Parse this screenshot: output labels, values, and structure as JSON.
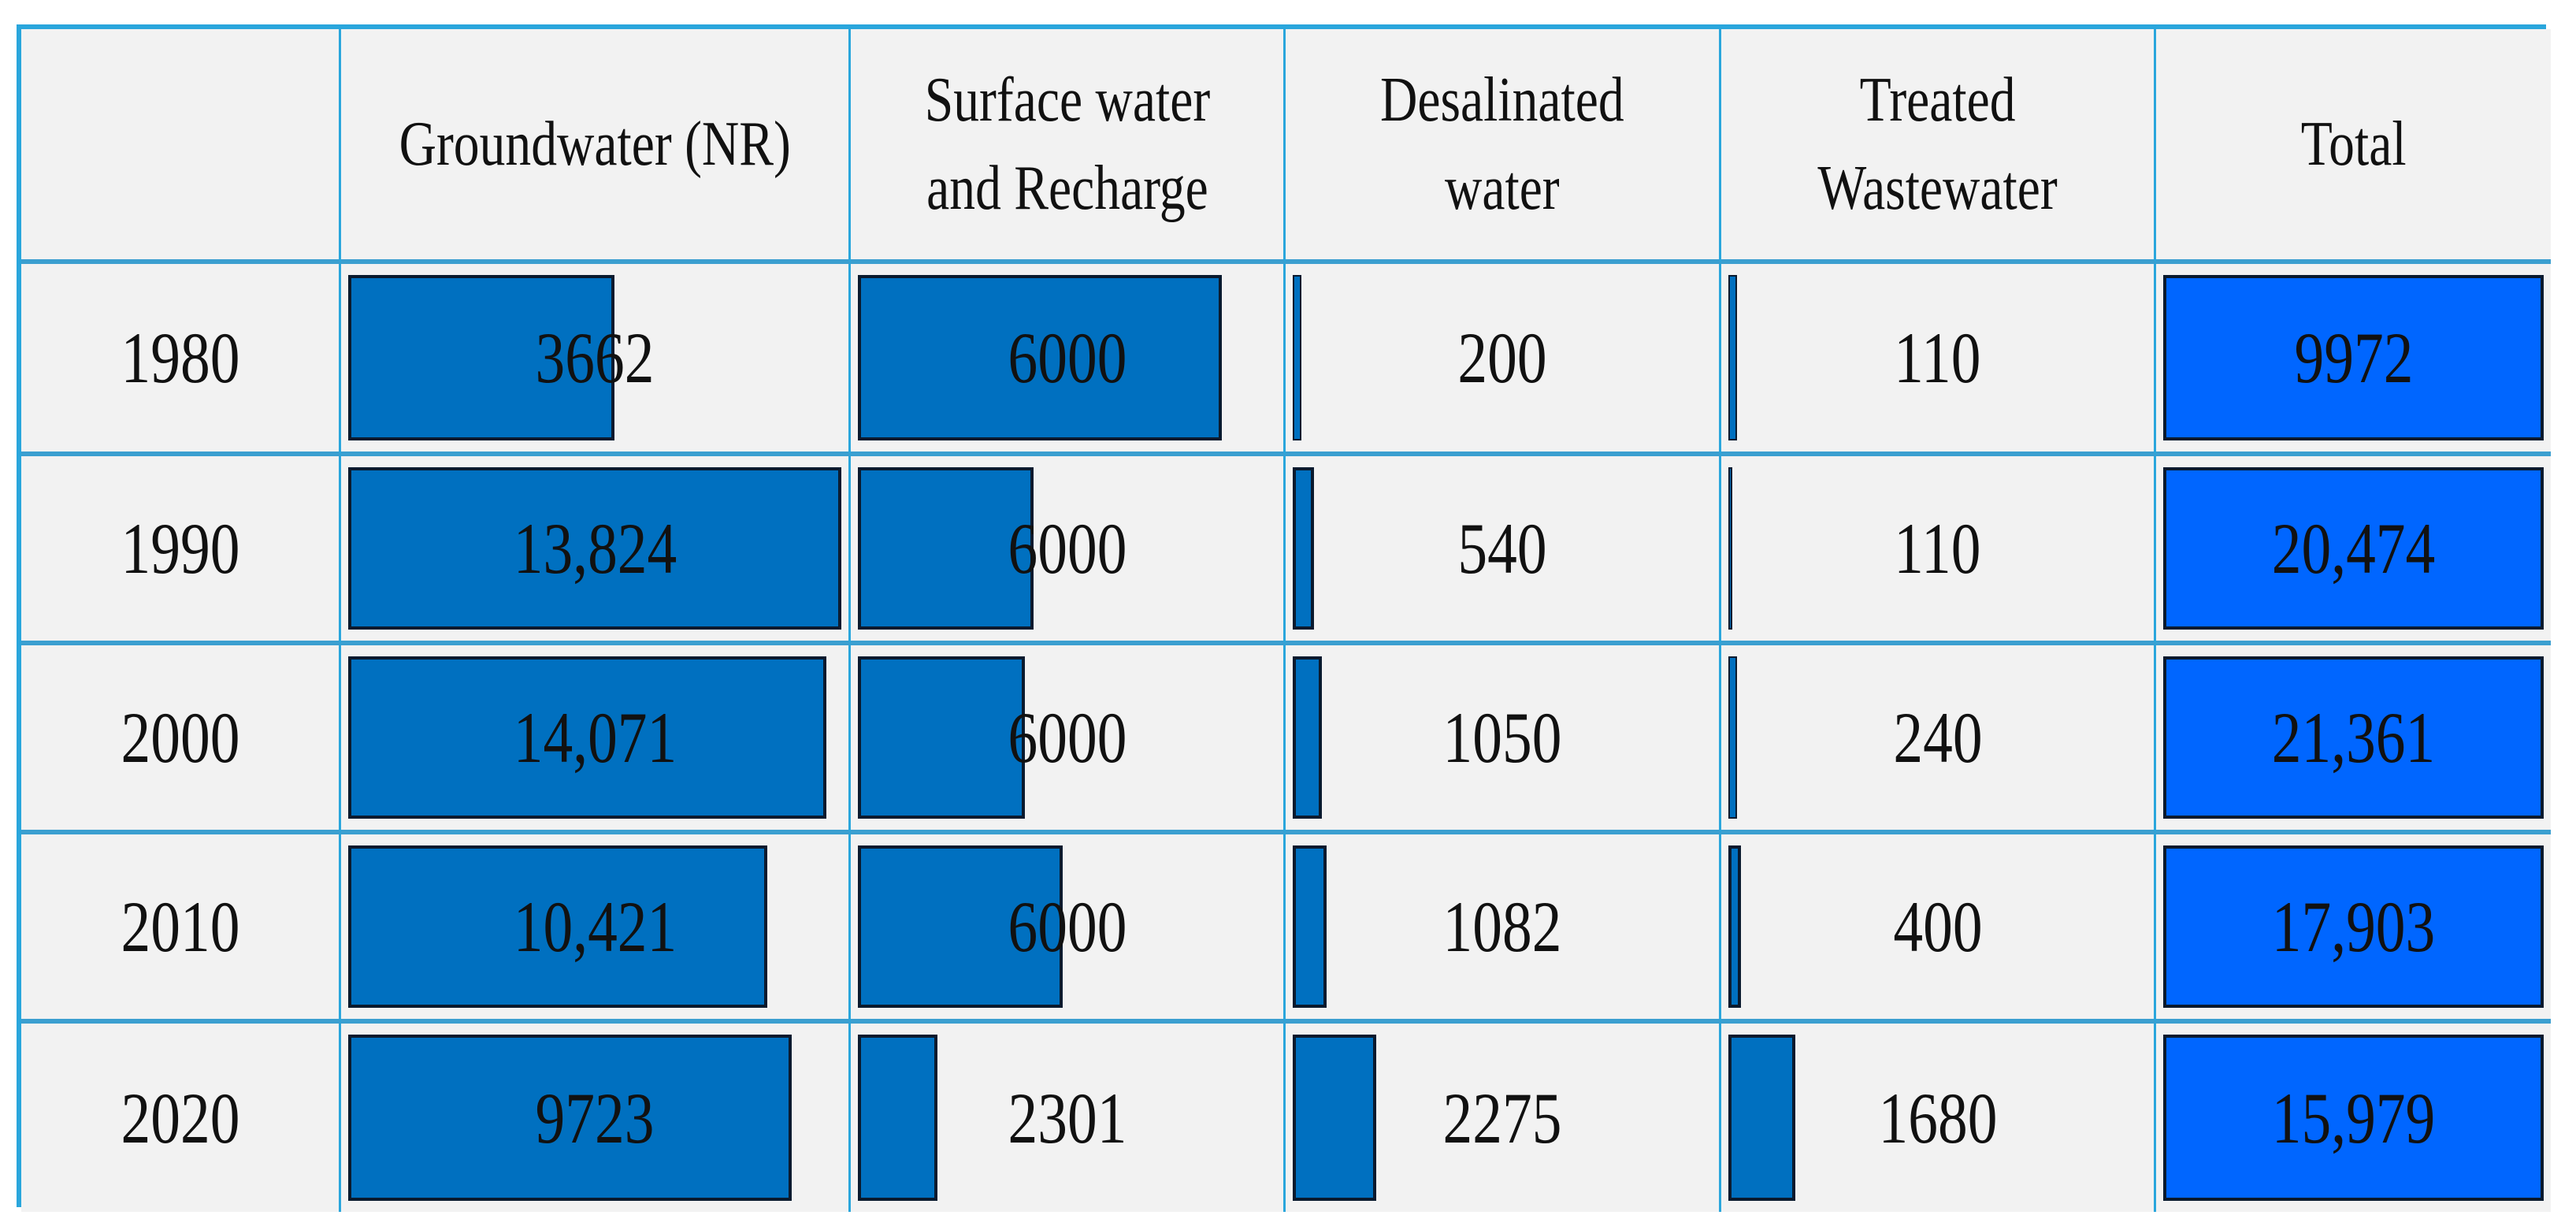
{
  "table": {
    "headers": [
      "",
      "Groundwater (NR)",
      "Surface water\nand Recharge",
      "Desalinated\nwater",
      "Treated\nWastewater",
      "Total"
    ],
    "rows": [
      {
        "year": "1980",
        "values": [
          "3662",
          "6000",
          "200",
          "110",
          "9972"
        ],
        "bar_fill": [
          0.54,
          0.87,
          0.02,
          0.02,
          1.0
        ]
      },
      {
        "year": "1990",
        "values": [
          "13,824",
          "6000",
          "540",
          "110",
          "20,474"
        ],
        "bar_fill": [
          1.0,
          0.42,
          0.05,
          0.01,
          1.0
        ]
      },
      {
        "year": "2000",
        "values": [
          "14,071",
          "6000",
          "1050",
          "240",
          "21,361"
        ],
        "bar_fill": [
          0.97,
          0.4,
          0.07,
          0.02,
          1.0
        ]
      },
      {
        "year": "2010",
        "values": [
          "10,421",
          "6000",
          "1082",
          "400",
          "17,903"
        ],
        "bar_fill": [
          0.85,
          0.49,
          0.08,
          0.03,
          1.0
        ]
      },
      {
        "year": "2020",
        "values": [
          "9723",
          "2301",
          "2275",
          "1680",
          "15,979"
        ],
        "bar_fill": [
          0.9,
          0.19,
          0.2,
          0.16,
          1.0
        ]
      }
    ]
  },
  "colors": {
    "bar": "#0070c0",
    "total_bar": "#0066ff",
    "cell_bg": "#f2f2f2",
    "border": "#2aa6dc"
  }
}
